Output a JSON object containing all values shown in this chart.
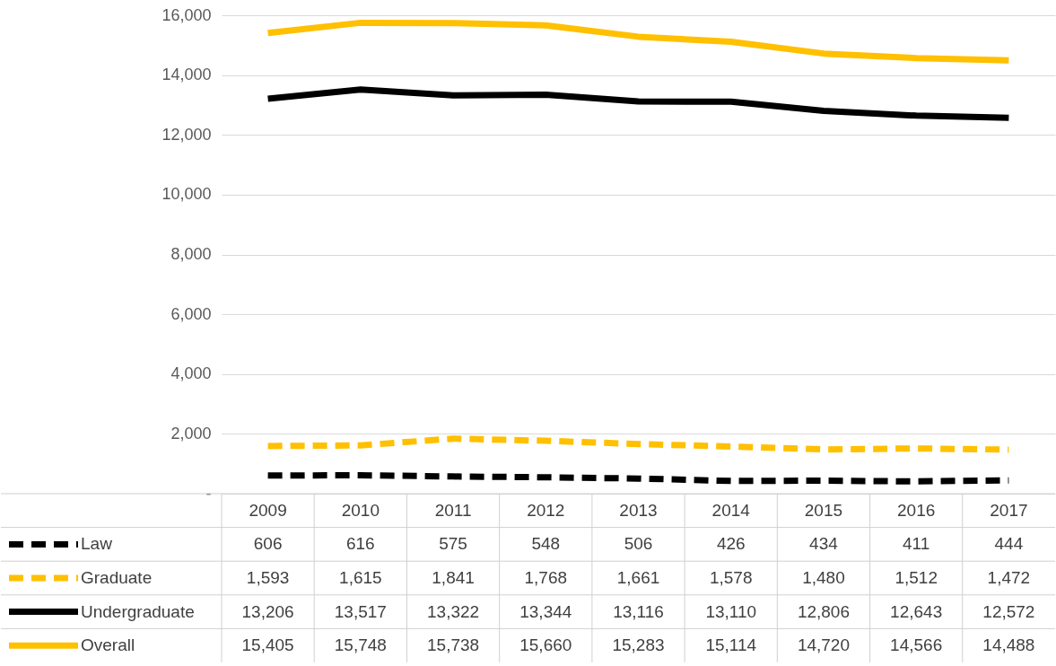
{
  "chart_data": {
    "type": "line",
    "categories": [
      "2009",
      "2010",
      "2011",
      "2012",
      "2013",
      "2014",
      "2015",
      "2016",
      "2017"
    ],
    "series": [
      {
        "name": "Law",
        "color": "#000000",
        "line_style": "dashed",
        "values": [
          606,
          616,
          575,
          548,
          506,
          426,
          434,
          411,
          444
        ],
        "value_labels": [
          "606",
          "616",
          "575",
          "548",
          "506",
          "426",
          "434",
          "411",
          "444"
        ]
      },
      {
        "name": "Graduate",
        "color": "#ffc000",
        "line_style": "dashed",
        "values": [
          1593,
          1615,
          1841,
          1768,
          1661,
          1578,
          1480,
          1512,
          1472
        ],
        "value_labels": [
          "1,593",
          "1,615",
          "1,841",
          "1,768",
          "1,661",
          "1,578",
          "1,480",
          "1,512",
          "1,472"
        ]
      },
      {
        "name": "Undergraduate",
        "color": "#000000",
        "line_style": "solid",
        "values": [
          13206,
          13517,
          13322,
          13344,
          13116,
          13110,
          12806,
          12643,
          12572
        ],
        "value_labels": [
          "13,206",
          "13,517",
          "13,322",
          "13,344",
          "13,116",
          "13,110",
          "12,806",
          "12,643",
          "12,572"
        ]
      },
      {
        "name": "Overall",
        "color": "#ffc000",
        "line_style": "solid",
        "values": [
          15405,
          15748,
          15738,
          15660,
          15283,
          15114,
          14720,
          14566,
          14488
        ],
        "value_labels": [
          "15,405",
          "15,748",
          "15,738",
          "15,660",
          "15,283",
          "15,114",
          "14,720",
          "14,566",
          "14,488"
        ]
      }
    ],
    "ylim": [
      0,
      16000
    ],
    "yticks": [
      {
        "value": 0,
        "label": "-"
      },
      {
        "value": 2000,
        "label": "2,000"
      },
      {
        "value": 4000,
        "label": "4,000"
      },
      {
        "value": 6000,
        "label": "6,000"
      },
      {
        "value": 8000,
        "label": "8,000"
      },
      {
        "value": 10000,
        "label": "10,000"
      },
      {
        "value": 12000,
        "label": "12,000"
      },
      {
        "value": 14000,
        "label": "14,000"
      },
      {
        "value": 16000,
        "label": "16,000"
      }
    ],
    "grid": "y",
    "legend": "bottom"
  }
}
